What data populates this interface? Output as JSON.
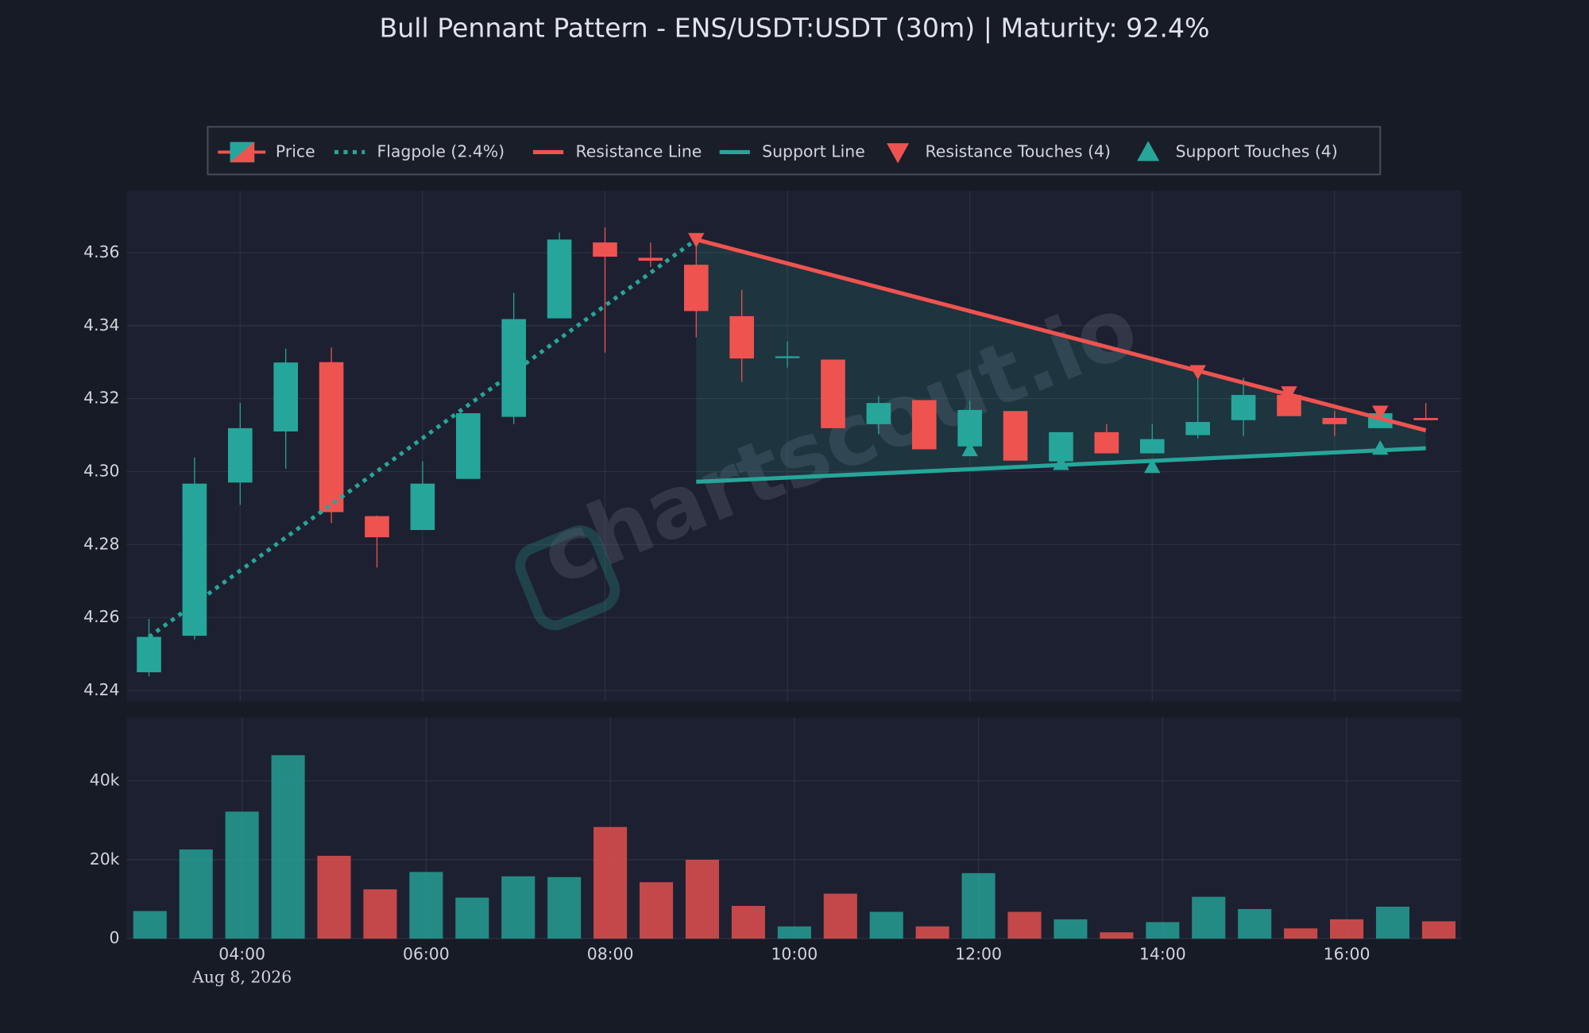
{
  "chart_data": [
    {
      "type": "candlestick",
      "title": "Bull Pennant Pattern - ENS/USDT:USDT (30m) | Maturity: 92.4%",
      "price_name": "Price",
      "x": [
        "03:00",
        "03:30",
        "04:00",
        "04:30",
        "05:00",
        "05:30",
        "06:00",
        "06:30",
        "07:00",
        "07:30",
        "08:00",
        "08:30",
        "09:00",
        "09:30",
        "10:00",
        "10:30",
        "11:00",
        "11:30",
        "12:00",
        "12:30",
        "13:00",
        "13:30",
        "14:00",
        "14:30",
        "15:00",
        "15:30",
        "16:00",
        "16:30",
        "17:00"
      ],
      "open": [
        4.245,
        4.255,
        4.297,
        4.311,
        4.33,
        4.2878,
        4.284,
        4.298,
        4.315,
        4.342,
        4.3628,
        4.3586,
        4.3567,
        4.3426,
        4.3311,
        4.3307,
        4.313,
        4.3196,
        4.3069,
        4.3166,
        4.3028,
        4.3108,
        4.305,
        4.31,
        4.3141,
        4.321,
        4.3147,
        4.3119,
        4.3147
      ],
      "high": [
        4.2596,
        4.3039,
        4.3188,
        4.3337,
        4.334,
        4.288,
        4.3028,
        4.316,
        4.349,
        4.3655,
        4.3669,
        4.3628,
        4.3636,
        4.3498,
        4.3357,
        4.3307,
        4.3207,
        4.3196,
        4.3194,
        4.3166,
        4.3108,
        4.313,
        4.313,
        4.3279,
        4.3257,
        4.323,
        4.3166,
        4.3169,
        4.3188
      ],
      "low": [
        4.2439,
        4.254,
        4.2909,
        4.3008,
        4.2859,
        4.2737,
        4.284,
        4.298,
        4.313,
        4.342,
        4.3326,
        4.3561,
        4.3368,
        4.3246,
        4.3285,
        4.3119,
        4.3102,
        4.3061,
        4.3055,
        4.303,
        4.3014,
        4.305,
        4.305,
        4.3091,
        4.3097,
        4.3152,
        4.3097,
        4.3119,
        4.3141
      ],
      "close": [
        4.2547,
        4.2967,
        4.3119,
        4.3299,
        4.2889,
        4.282,
        4.2967,
        4.316,
        4.3418,
        4.3636,
        4.3589,
        4.3578,
        4.344,
        4.331,
        4.3316,
        4.3119,
        4.3188,
        4.3061,
        4.3169,
        4.303,
        4.3108,
        4.305,
        4.3089,
        4.3136,
        4.321,
        4.3152,
        4.313,
        4.316,
        4.3141
      ],
      "up_color": "#26a69a",
      "down_color": "#ef5350",
      "ylim": [
        4.237,
        4.377
      ],
      "yticks": [
        4.24,
        4.26,
        4.28,
        {
          "value": 4.3,
          "label": "4.30"
        },
        4.32,
        4.34,
        4.36
      ],
      "grid": true,
      "lines": [
        {
          "name": "Flagpole (2.4%)",
          "style": "dotted",
          "color": "#26a69a",
          "x": [
            "03:00",
            "09:00"
          ],
          "values": [
            4.2547,
            4.3636
          ]
        },
        {
          "name": "Resistance Line",
          "style": "solid",
          "color": "#ef5350",
          "x": [
            "09:00",
            "17:00"
          ],
          "values": [
            4.3636,
            4.3113
          ]
        },
        {
          "name": "Support Line",
          "style": "solid",
          "color": "#26a69a",
          "x": [
            "09:00",
            "17:00"
          ],
          "values": [
            4.2972,
            4.3064
          ]
        }
      ],
      "markers": [
        {
          "name": "Resistance Touches (4)",
          "shape": "down",
          "color": "#ef5350",
          "x": [
            "09:00",
            "14:30",
            "15:30",
            "16:30"
          ],
          "values": [
            4.3636,
            4.3274,
            4.3216,
            4.3163
          ]
        },
        {
          "name": "Support Touches (4)",
          "shape": "up",
          "color": "#26a69a",
          "x": [
            "12:00",
            "13:00",
            "14:00",
            "16:30"
          ],
          "values": [
            4.306,
            4.3022,
            4.3014,
            4.3064
          ]
        }
      ],
      "watermark": "chartscout.io"
    },
    {
      "type": "bar",
      "values": [
        7000,
        22600,
        32200,
        46500,
        21000,
        12500,
        16900,
        10400,
        15800,
        15600,
        28300,
        14300,
        20000,
        8300,
        3100,
        11400,
        6800,
        3100,
        16600,
        6800,
        4900,
        1600,
        4200,
        10600,
        7500,
        2600,
        4900,
        8100,
        4400
      ],
      "ylim": [
        0,
        56000
      ],
      "yticks": [
        0,
        {
          "value": 20000,
          "label": "20k"
        },
        {
          "value": 40000,
          "label": "40k"
        }
      ],
      "xticks": [
        "04:00",
        "06:00",
        "08:00",
        "10:00",
        "12:00",
        "14:00",
        "16:00"
      ],
      "date_label": "Aug 8, 2026",
      "grid": true
    }
  ]
}
